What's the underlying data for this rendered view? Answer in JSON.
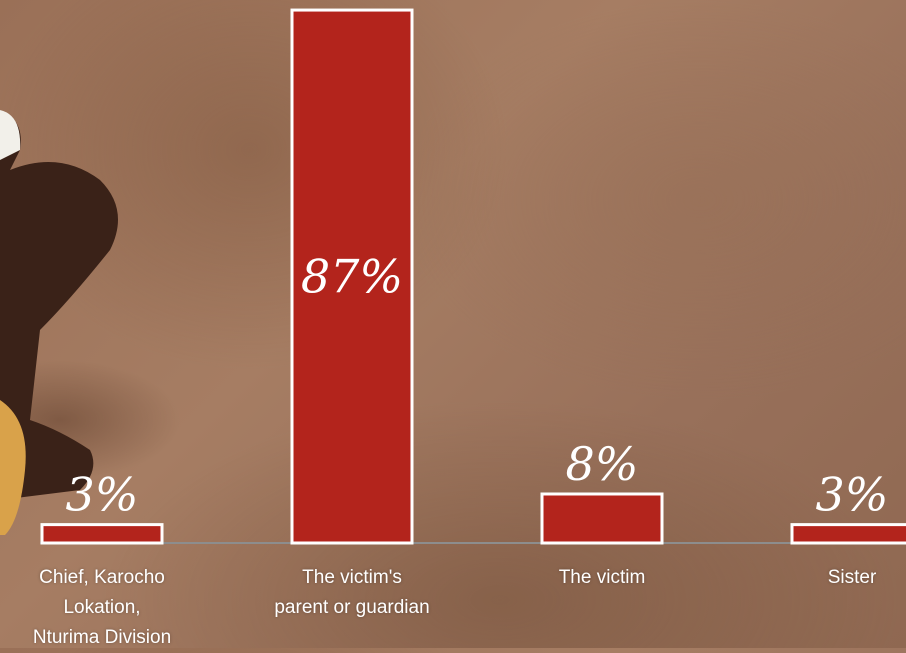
{
  "chart_data": {
    "type": "bar",
    "categories": [
      "Chief, Karocho\nLokation,\nNturima Division",
      "The victim's\nparent or guardian",
      "The victim",
      "Sister"
    ],
    "values": [
      3,
      87,
      8,
      3
    ],
    "value_labels": [
      "3%",
      "87%",
      "8%",
      "3%"
    ],
    "color": "#b3241c",
    "ylim": [
      0,
      87.5
    ]
  }
}
